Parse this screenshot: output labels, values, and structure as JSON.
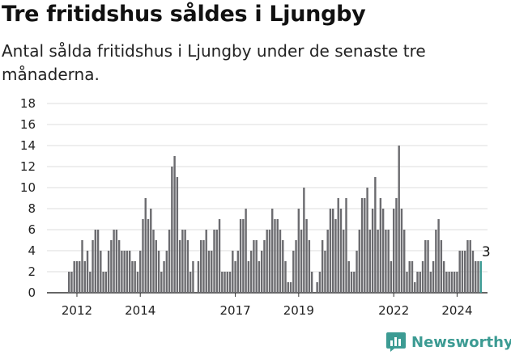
{
  "header": {
    "title": "Tre fritidshus såldes i Ljungby",
    "subtitle": "Antal sålda fritidshus i Ljungby under de senaste tre månaderna."
  },
  "brand": {
    "name": "Newsworthy",
    "logo_icon": "newsworthy-logo-icon",
    "color": "#3c9b93"
  },
  "chart_data": {
    "type": "bar",
    "title": "Tre fritidshus såldes i Ljungby",
    "subtitle": "Antal sålda fritidshus i Ljungby under de senaste tre månaderna.",
    "xlabel": "",
    "ylabel": "",
    "ylim": [
      0,
      18
    ],
    "yticks": [
      0,
      2,
      4,
      6,
      8,
      10,
      12,
      14,
      16,
      18
    ],
    "x_tick_labels": [
      {
        "label": "2012",
        "index": 3
      },
      {
        "label": "2014",
        "index": 27
      },
      {
        "label": "2017",
        "index": 63
      },
      {
        "label": "2019",
        "index": 87
      },
      {
        "label": "2022",
        "index": 123
      },
      {
        "label": "2024",
        "index": 147
      }
    ],
    "grid": true,
    "bar_color": "#6b6b6f",
    "highlight_color": "#3c9b93",
    "annotation": {
      "text": "3",
      "index": 158,
      "value": 3
    },
    "values": [
      2,
      2,
      3,
      3,
      3,
      5,
      3,
      4,
      2,
      5,
      6,
      6,
      4,
      2,
      2,
      4,
      5,
      6,
      6,
      5,
      4,
      4,
      4,
      4,
      3,
      3,
      2,
      4,
      7,
      9,
      7,
      8,
      6,
      5,
      4,
      2,
      3,
      4,
      6,
      12,
      13,
      11,
      5,
      6,
      6,
      5,
      2,
      3,
      0,
      3,
      5,
      5,
      6,
      4,
      4,
      6,
      6,
      7,
      2,
      2,
      2,
      2,
      4,
      3,
      4,
      7,
      7,
      8,
      3,
      4,
      5,
      5,
      3,
      4,
      5,
      6,
      6,
      8,
      7,
      7,
      6,
      5,
      3,
      1,
      1,
      4,
      5,
      8,
      6,
      10,
      7,
      5,
      2,
      0,
      1,
      2,
      5,
      4,
      6,
      8,
      8,
      7,
      9,
      8,
      6,
      9,
      3,
      2,
      2,
      4,
      6,
      9,
      9,
      10,
      6,
      8,
      11,
      6,
      9,
      8,
      6,
      6,
      3,
      8,
      9,
      14,
      8,
      6,
      2,
      3,
      3,
      1,
      2,
      2,
      3,
      5,
      5,
      2,
      3,
      6,
      7,
      5,
      3,
      2,
      2,
      2,
      2,
      2,
      4,
      4,
      4,
      5,
      5,
      4,
      3,
      3,
      3
    ]
  }
}
